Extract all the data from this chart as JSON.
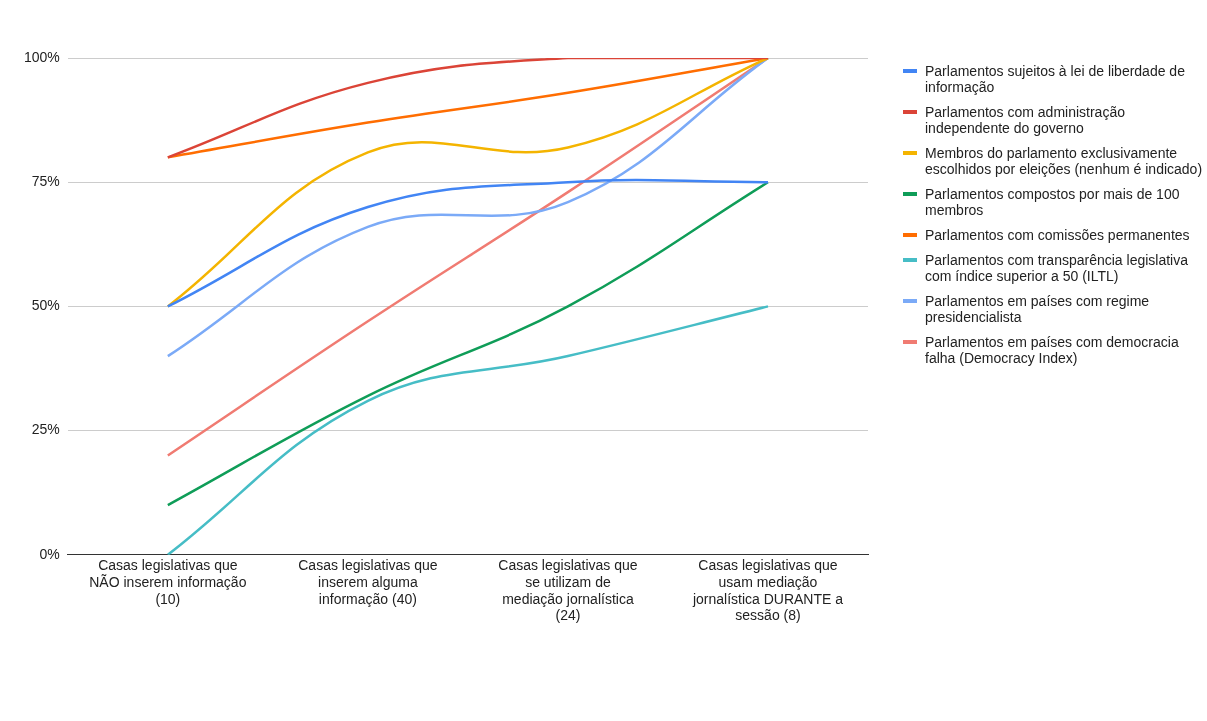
{
  "chart_data": {
    "type": "line",
    "categories": [
      "Casas legislativas que NÃO inserem informação (10)",
      "Casas legislativas que inserem alguma informação (40)",
      "Casas legislativas que se utilizam de mediação jornalística (24)",
      "Casas legislativas que usam mediação jornalística DURANTE a sessão (8)"
    ],
    "series": [
      {
        "name": "Parlamentos sujeitos à lei de liberdade de informação",
        "color": "#4285f4",
        "values": [
          50,
          70,
          75,
          75
        ]
      },
      {
        "name": "Parlamentos com administração independente do governo",
        "color": "#db4437",
        "values": [
          80,
          95,
          100,
          100
        ]
      },
      {
        "name": "Membros do parlamento exclusivamente escolhidos por eleições (nenhum é indicado)",
        "color": "#f4b400",
        "values": [
          50,
          81,
          82,
          100
        ]
      },
      {
        "name": "Parlamentos compostos por mais de 100 membros",
        "color": "#0f9d58",
        "values": [
          10,
          32,
          50,
          75
        ]
      },
      {
        "name": "Parlamentos com comissões permanentes",
        "color": "#ff6d01",
        "values": [
          80,
          87,
          93,
          100
        ]
      },
      {
        "name": "Parlamentos com transparência legislativa com índice superior a 50 (ILTL)",
        "color": "#46bdc6",
        "values": [
          0,
          31,
          40,
          50
        ]
      },
      {
        "name": "Parlamentos em países com regime presidencialista",
        "color": "#7baaf7",
        "values": [
          40,
          66,
          71,
          100
        ]
      },
      {
        "name": "Parlamentos em países com democracia falha (Democracy Index)",
        "color": "#f07b72",
        "values": [
          20,
          47,
          73,
          100
        ]
      }
    ],
    "ylim": [
      0,
      100
    ],
    "yticks": [
      {
        "value": 0,
        "label": "0%"
      },
      {
        "value": 25,
        "label": "25%"
      },
      {
        "value": 50,
        "label": "50%"
      },
      {
        "value": 75,
        "label": "75%"
      },
      {
        "value": 100,
        "label": "100%"
      }
    ],
    "grid": "y",
    "legend": "right",
    "marker": "none",
    "line_style": "solid"
  }
}
